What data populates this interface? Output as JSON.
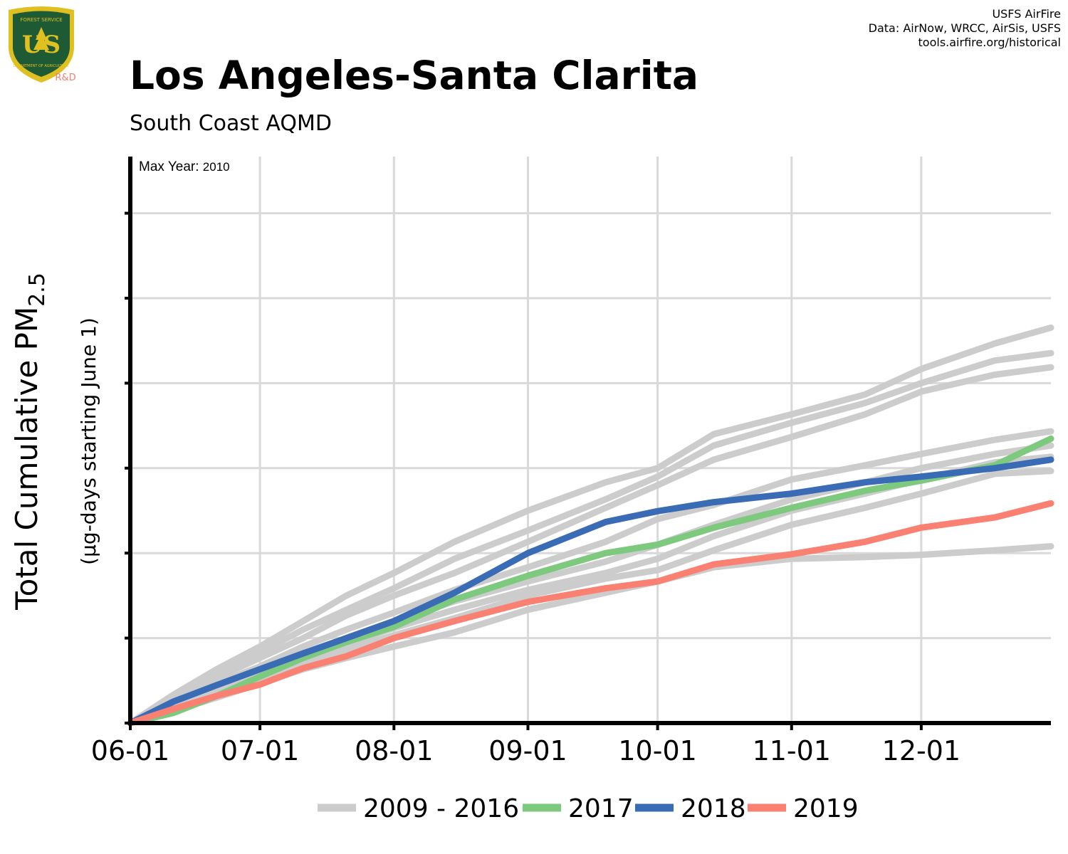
{
  "logo": {
    "text": "US",
    "top_text": "FOREST SERVICE",
    "bottom_text": "DEPARTMENT OF AGRICULTURE",
    "badge": "R&D",
    "icon": "forest-service-shield-icon"
  },
  "credits": {
    "line1": "USFS AirFire",
    "line2": "Data: AirNow, WRCC, AirSis, USFS",
    "line3": "tools.airfire.org/historical"
  },
  "title": "Los Angeles-Santa Clarita",
  "subtitle": "South Coast AQMD",
  "y_axis": {
    "label_main": "Total Cumulative PM",
    "label_sub_subscript": "2.5",
    "label_sub": "(µg-days starting June 1)"
  },
  "annotation": {
    "label": "Max Year:",
    "value": "2010"
  },
  "colors": {
    "background_series": "#cccccc",
    "s2017": "#7dc97d",
    "s2018": "#3a6bb5",
    "s2019": "#fa8072",
    "grid": "#d9d9d9"
  },
  "chart_data": {
    "type": "line",
    "x_unit": "days since June 1",
    "x_ticks": [
      {
        "label": "06-01",
        "day": 0
      },
      {
        "label": "07-01",
        "day": 30
      },
      {
        "label": "08-01",
        "day": 61
      },
      {
        "label": "09-01",
        "day": 92
      },
      {
        "label": "10-01",
        "day": 122
      },
      {
        "label": "11-01",
        "day": 153
      },
      {
        "label": "12-01",
        "day": 183
      }
    ],
    "xlim": [
      0,
      213
    ],
    "ylim": [
      0,
      1000
    ],
    "y_ticks": [
      0,
      150,
      300,
      450,
      600,
      750,
      900
    ],
    "y_tick_labels_shown": false,
    "grid": true,
    "legend_position": "bottom",
    "legend": [
      {
        "label": "2009 - 2016",
        "color": "#cccccc"
      },
      {
        "label": "2017",
        "color": "#7dc97d"
      },
      {
        "label": "2018",
        "color": "#3a6bb5"
      },
      {
        "label": "2019",
        "color": "#fa8072"
      }
    ],
    "series": [
      {
        "group": "2009 - 2016",
        "color": "#cccccc",
        "points": [
          [
            0,
            0
          ],
          [
            10,
            50
          ],
          [
            20,
            95
          ],
          [
            30,
            135
          ],
          [
            40,
            180
          ],
          [
            50,
            225
          ],
          [
            61,
            265
          ],
          [
            75,
            320
          ],
          [
            92,
            375
          ],
          [
            110,
            425
          ],
          [
            122,
            450
          ],
          [
            135,
            510
          ],
          [
            153,
            545
          ],
          [
            170,
            580
          ],
          [
            183,
            625
          ],
          [
            200,
            670
          ],
          [
            213,
            698
          ]
        ]
      },
      {
        "group": "2009 - 2016",
        "color": "#cccccc",
        "points": [
          [
            0,
            0
          ],
          [
            10,
            45
          ],
          [
            20,
            85
          ],
          [
            30,
            125
          ],
          [
            40,
            165
          ],
          [
            50,
            200
          ],
          [
            61,
            238
          ],
          [
            75,
            290
          ],
          [
            92,
            340
          ],
          [
            110,
            395
          ],
          [
            122,
            435
          ],
          [
            135,
            490
          ],
          [
            153,
            530
          ],
          [
            170,
            565
          ],
          [
            183,
            600
          ],
          [
            200,
            640
          ],
          [
            213,
            653
          ]
        ]
      },
      {
        "group": "2009 - 2016",
        "color": "#cccccc",
        "points": [
          [
            0,
            0
          ],
          [
            10,
            40
          ],
          [
            20,
            80
          ],
          [
            30,
            115
          ],
          [
            40,
            150
          ],
          [
            50,
            190
          ],
          [
            61,
            225
          ],
          [
            75,
            265
          ],
          [
            92,
            320
          ],
          [
            110,
            380
          ],
          [
            122,
            420
          ],
          [
            135,
            465
          ],
          [
            153,
            505
          ],
          [
            170,
            545
          ],
          [
            183,
            585
          ],
          [
            200,
            615
          ],
          [
            213,
            628
          ]
        ]
      },
      {
        "group": "2009 - 2016",
        "color": "#cccccc",
        "points": [
          [
            0,
            0
          ],
          [
            10,
            35
          ],
          [
            20,
            70
          ],
          [
            30,
            100
          ],
          [
            40,
            135
          ],
          [
            50,
            165
          ],
          [
            61,
            195
          ],
          [
            75,
            235
          ],
          [
            92,
            275
          ],
          [
            110,
            320
          ],
          [
            122,
            360
          ],
          [
            135,
            385
          ],
          [
            153,
            430
          ],
          [
            170,
            455
          ],
          [
            183,
            475
          ],
          [
            200,
            500
          ],
          [
            213,
            515
          ]
        ]
      },
      {
        "group": "2009 - 2016",
        "color": "#cccccc",
        "points": [
          [
            0,
            0
          ],
          [
            10,
            30
          ],
          [
            20,
            60
          ],
          [
            30,
            90
          ],
          [
            40,
            120
          ],
          [
            50,
            150
          ],
          [
            61,
            180
          ],
          [
            75,
            215
          ],
          [
            92,
            250
          ],
          [
            110,
            285
          ],
          [
            122,
            315
          ],
          [
            135,
            350
          ],
          [
            153,
            395
          ],
          [
            170,
            425
          ],
          [
            183,
            450
          ],
          [
            200,
            475
          ],
          [
            213,
            490
          ]
        ]
      },
      {
        "group": "2009 - 2016",
        "color": "#cccccc",
        "points": [
          [
            0,
            0
          ],
          [
            10,
            30
          ],
          [
            20,
            58
          ],
          [
            30,
            85
          ],
          [
            40,
            112
          ],
          [
            50,
            140
          ],
          [
            61,
            168
          ],
          [
            75,
            200
          ],
          [
            92,
            235
          ],
          [
            110,
            265
          ],
          [
            122,
            290
          ],
          [
            135,
            330
          ],
          [
            153,
            375
          ],
          [
            170,
            405
          ],
          [
            183,
            430
          ],
          [
            200,
            460
          ],
          [
            213,
            470
          ]
        ]
      },
      {
        "group": "2009 - 2016",
        "color": "#cccccc",
        "points": [
          [
            0,
            0
          ],
          [
            10,
            25
          ],
          [
            20,
            52
          ],
          [
            30,
            78
          ],
          [
            40,
            105
          ],
          [
            50,
            130
          ],
          [
            61,
            155
          ],
          [
            75,
            185
          ],
          [
            92,
            225
          ],
          [
            110,
            255
          ],
          [
            122,
            270
          ],
          [
            135,
            305
          ],
          [
            153,
            350
          ],
          [
            170,
            380
          ],
          [
            183,
            405
          ],
          [
            200,
            440
          ],
          [
            213,
            445
          ]
        ]
      },
      {
        "group": "2009 - 2016",
        "color": "#cccccc",
        "points": [
          [
            0,
            0
          ],
          [
            10,
            22
          ],
          [
            20,
            45
          ],
          [
            30,
            70
          ],
          [
            40,
            95
          ],
          [
            50,
            115
          ],
          [
            61,
            135
          ],
          [
            75,
            160
          ],
          [
            92,
            200
          ],
          [
            110,
            230
          ],
          [
            122,
            250
          ],
          [
            135,
            275
          ],
          [
            153,
            290
          ],
          [
            170,
            293
          ],
          [
            183,
            297
          ],
          [
            200,
            305
          ],
          [
            213,
            312
          ]
        ]
      },
      {
        "name": "2017",
        "color": "#7dc97d",
        "points": [
          [
            0,
            0
          ],
          [
            10,
            18
          ],
          [
            20,
            48
          ],
          [
            30,
            82
          ],
          [
            40,
            115
          ],
          [
            50,
            143
          ],
          [
            61,
            170
          ],
          [
            75,
            218
          ],
          [
            92,
            260
          ],
          [
            110,
            300
          ],
          [
            122,
            315
          ],
          [
            135,
            345
          ],
          [
            153,
            380
          ],
          [
            170,
            410
          ],
          [
            183,
            428
          ],
          [
            200,
            455
          ],
          [
            213,
            502
          ]
        ]
      },
      {
        "name": "2018",
        "color": "#3a6bb5",
        "points": [
          [
            0,
            0
          ],
          [
            10,
            38
          ],
          [
            20,
            67
          ],
          [
            30,
            95
          ],
          [
            40,
            123
          ],
          [
            50,
            150
          ],
          [
            61,
            180
          ],
          [
            75,
            230
          ],
          [
            92,
            300
          ],
          [
            110,
            355
          ],
          [
            122,
            374
          ],
          [
            135,
            390
          ],
          [
            153,
            405
          ],
          [
            170,
            425
          ],
          [
            183,
            435
          ],
          [
            200,
            450
          ],
          [
            213,
            465
          ]
        ]
      },
      {
        "name": "2019",
        "color": "#fa8072",
        "points": [
          [
            0,
            0
          ],
          [
            10,
            25
          ],
          [
            20,
            48
          ],
          [
            30,
            68
          ],
          [
            40,
            97
          ],
          [
            50,
            118
          ],
          [
            61,
            150
          ],
          [
            75,
            180
          ],
          [
            92,
            214
          ],
          [
            110,
            238
          ],
          [
            122,
            250
          ],
          [
            135,
            280
          ],
          [
            153,
            298
          ],
          [
            170,
            320
          ],
          [
            183,
            345
          ],
          [
            200,
            363
          ],
          [
            213,
            388
          ]
        ]
      }
    ]
  }
}
